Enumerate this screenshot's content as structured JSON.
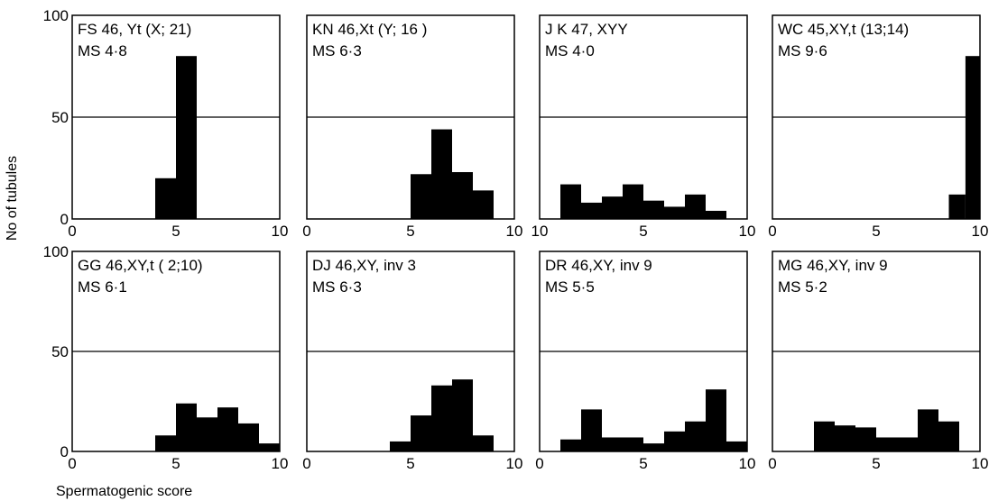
{
  "figure": {
    "ylabel": "No  of  tubules",
    "xlabel": "Spermatogenic  score"
  },
  "chart_data": [
    {
      "type": "bar",
      "line1": "FS 46, Yt (X; 21)",
      "line2": "MS 4·8",
      "bins": [
        [
          4,
          5
        ],
        [
          5,
          6
        ]
      ],
      "values": [
        20,
        80
      ],
      "xticks": [
        0,
        5,
        10
      ],
      "yticks": [
        0,
        50,
        100
      ],
      "xlim": [
        0,
        10
      ],
      "ylim": [
        0,
        100
      ],
      "reference_line": 50
    },
    {
      "type": "bar",
      "line1": "KN 46,Xt (Y; 16 )",
      "line2": "MS 6·3",
      "bins": [
        [
          5,
          6
        ],
        [
          6,
          7
        ],
        [
          7,
          8
        ],
        [
          8,
          9
        ]
      ],
      "values": [
        22,
        44,
        23,
        14
      ],
      "xticks": [
        0,
        5,
        10
      ],
      "xlim": [
        0,
        10
      ],
      "ylim": [
        0,
        100
      ],
      "reference_line": 50
    },
    {
      "type": "bar",
      "line1": "J K 47, XYY",
      "line2": "MS 4·0",
      "bins": [
        [
          1,
          2
        ],
        [
          2,
          3
        ],
        [
          3,
          4
        ],
        [
          4,
          5
        ],
        [
          5,
          6
        ],
        [
          6,
          7
        ],
        [
          7,
          8
        ],
        [
          8,
          9
        ]
      ],
      "values": [
        17,
        8,
        11,
        17,
        9,
        6,
        12,
        4
      ],
      "xticks": [
        10,
        5,
        10
      ],
      "xlim": [
        0,
        10
      ],
      "ylim": [
        0,
        100
      ],
      "reference_line": 50
    },
    {
      "type": "bar",
      "line1": "WC 45,XY,t (13;14)",
      "line2": "MS 9·6",
      "bins": [
        [
          8.5,
          9.3
        ],
        [
          9.3,
          10
        ]
      ],
      "values": [
        12,
        80
      ],
      "xticks": [
        0,
        5,
        10
      ],
      "xlim": [
        0,
        10
      ],
      "ylim": [
        0,
        100
      ],
      "reference_line": 50
    },
    {
      "type": "bar",
      "line1": "GG 46,XY,t ( 2;10)",
      "line2": "MS 6·1",
      "bins": [
        [
          4,
          5
        ],
        [
          5,
          6
        ],
        [
          6,
          7
        ],
        [
          7,
          8
        ],
        [
          8,
          9
        ],
        [
          9,
          10
        ]
      ],
      "values": [
        8,
        24,
        17,
        22,
        14,
        4
      ],
      "xticks": [
        0,
        5,
        10
      ],
      "yticks": [
        0,
        50,
        100
      ],
      "xlim": [
        0,
        10
      ],
      "ylim": [
        0,
        100
      ],
      "reference_line": 50
    },
    {
      "type": "bar",
      "line1": "DJ 46,XY, inv 3",
      "line2": "MS 6·3",
      "bins": [
        [
          4,
          5
        ],
        [
          5,
          6
        ],
        [
          6,
          7
        ],
        [
          7,
          8
        ],
        [
          8,
          9
        ]
      ],
      "values": [
        5,
        18,
        33,
        36,
        8
      ],
      "xticks": [
        0,
        5,
        10
      ],
      "xlim": [
        0,
        10
      ],
      "ylim": [
        0,
        100
      ],
      "reference_line": 50
    },
    {
      "type": "bar",
      "line1": "DR 46,XY, inv 9",
      "line2": "MS 5·5",
      "bins": [
        [
          1,
          2
        ],
        [
          2,
          3
        ],
        [
          3,
          4
        ],
        [
          4,
          5
        ],
        [
          5,
          6
        ],
        [
          6,
          7
        ],
        [
          7,
          8
        ],
        [
          8,
          9
        ],
        [
          9,
          10
        ]
      ],
      "values": [
        6,
        21,
        7,
        7,
        4,
        10,
        15,
        31,
        5
      ],
      "xticks": [
        0,
        5,
        10
      ],
      "xlim": [
        0,
        10
      ],
      "ylim": [
        0,
        100
      ],
      "reference_line": 50
    },
    {
      "type": "bar",
      "line1": "MG 46,XY, inv 9",
      "line2": "MS 5·2",
      "bins": [
        [
          2,
          3
        ],
        [
          3,
          4
        ],
        [
          4,
          5
        ],
        [
          5,
          6
        ],
        [
          6,
          7
        ],
        [
          7,
          8
        ],
        [
          8,
          9
        ]
      ],
      "values": [
        15,
        13,
        12,
        7,
        7,
        21,
        15
      ],
      "xticks": [
        0,
        5,
        10
      ],
      "xlim": [
        0,
        10
      ],
      "ylim": [
        0,
        100
      ],
      "reference_line": 50
    }
  ]
}
